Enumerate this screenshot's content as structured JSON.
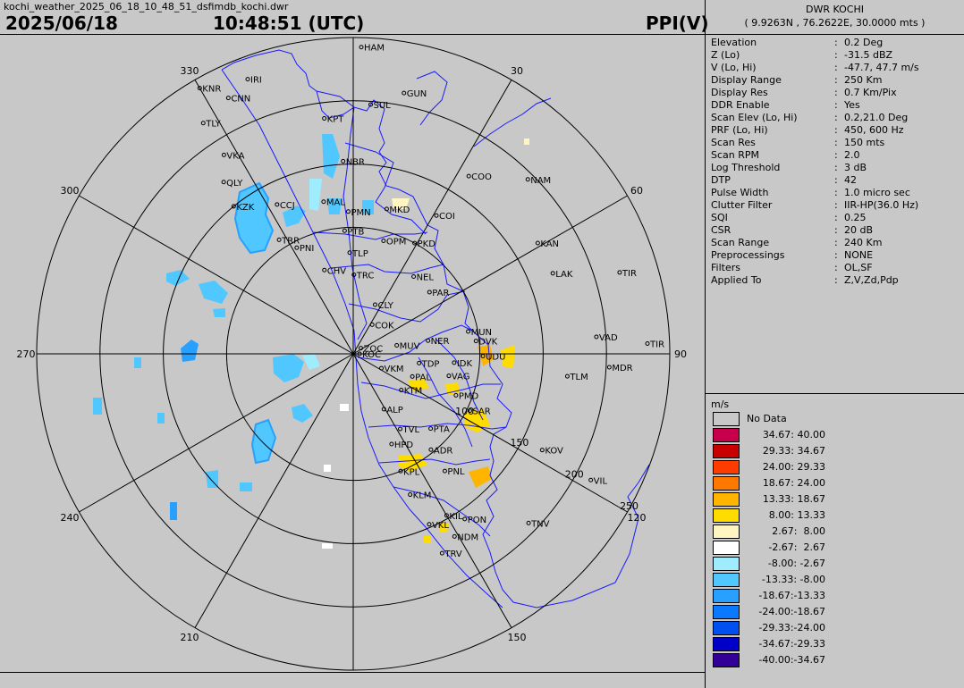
{
  "header": {
    "file_title": "kochi_weather_2025_06_18_10_48_51_dsfimdb_kochi.dwr",
    "date": "2025/06/18",
    "time": "10:48:51 (UTC)",
    "mode": "PPI(V)"
  },
  "station": {
    "name": "DWR KOCHI",
    "coords": "( 9.9263N , 76.2622E, 30.0000 mts )"
  },
  "parameters": [
    {
      "key": "Elevation",
      "value": "0.2 Deg"
    },
    {
      "key": "Z (Lo)",
      "value": "-31.5 dBZ"
    },
    {
      "key": "V (Lo, Hi)",
      "value": "-47.7, 47.7 m/s"
    },
    {
      "key": "Display Range",
      "value": "250 Km"
    },
    {
      "key": "Display Res",
      "value": "0.7 Km/Pix"
    },
    {
      "key": "DDR Enable",
      "value": "Yes"
    },
    {
      "key": "Scan Elev (Lo, Hi)",
      "value": "0.2,21.0 Deg"
    },
    {
      "key": "PRF (Lo, Hi)",
      "value": "450, 600 Hz"
    },
    {
      "key": "Scan Res",
      "value": "150 mts"
    },
    {
      "key": "Scan RPM",
      "value": "2.0"
    },
    {
      "key": "Log Threshold",
      "value": "3 dB"
    },
    {
      "key": "DTP",
      "value": "42"
    },
    {
      "key": "Pulse Width",
      "value": "1.0 micro sec"
    },
    {
      "key": "Clutter Filter",
      "value": "IIR-HP(36.0 Hz)"
    },
    {
      "key": "SQI",
      "value": "0.25"
    },
    {
      "key": "CSR",
      "value": "20 dB"
    },
    {
      "key": "Scan Range",
      "value": "240 Km"
    },
    {
      "key": "Preprocessings",
      "value": "NONE"
    },
    {
      "key": "Filters",
      "value": "OL,SF"
    },
    {
      "key": "Applied To",
      "value": "Z,V,Zd,Pdp"
    }
  ],
  "legend": {
    "unit": "m/s",
    "no_data_label": "No Data",
    "entries": [
      {
        "label": "34.67: 40.00",
        "color": "#c8004b"
      },
      {
        "label": "29.33: 34.67",
        "color": "#c80000"
      },
      {
        "label": "24.00: 29.33",
        "color": "#ff3c00"
      },
      {
        "label": "18.67: 24.00",
        "color": "#ff7800"
      },
      {
        "label": "13.33: 18.67",
        "color": "#ffb400"
      },
      {
        "label": " 8.00: 13.33",
        "color": "#ffdc00"
      },
      {
        "label": " 2.67:  8.00",
        "color": "#fff5c0"
      },
      {
        "label": "-2.67:  2.67",
        "color": "#ffffff"
      },
      {
        "label": "-8.00: -2.67",
        "color": "#a0ecff"
      },
      {
        "label": "-13.33: -8.00",
        "color": "#50c8ff"
      },
      {
        "label": "-18.67:-13.33",
        "color": "#28a0ff"
      },
      {
        "label": "-24.00:-18.67",
        "color": "#0a78ff"
      },
      {
        "label": "-29.33:-24.00",
        "color": "#0050f0"
      },
      {
        "label": "-34.67:-29.33",
        "color": "#0000c8"
      },
      {
        "label": "-40.00:-34.67",
        "color": "#320096"
      }
    ]
  },
  "azimuth_labels": [
    "30",
    "60",
    "90",
    "120",
    "150",
    "210",
    "240",
    "270",
    "300",
    "330"
  ],
  "range_labels": [
    "100",
    "150",
    "200",
    "250"
  ],
  "places": [
    {
      "name": "HAM",
      "az": 1.5,
      "r": 0.97
    },
    {
      "name": "IRI",
      "az": 339,
      "r": 0.93
    },
    {
      "name": "CNN",
      "az": 334,
      "r": 0.9
    },
    {
      "name": "KNR",
      "az": 330,
      "r": 0.97
    },
    {
      "name": "TLY",
      "az": 327,
      "r": 0.87
    },
    {
      "name": "GUN",
      "az": 11,
      "r": 0.84
    },
    {
      "name": "SUL",
      "az": 4,
      "r": 0.79
    },
    {
      "name": "VKA",
      "az": 327,
      "r": 0.75
    },
    {
      "name": "KPT",
      "az": 353,
      "r": 0.75
    },
    {
      "name": "QLY",
      "az": 323,
      "r": 0.68
    },
    {
      "name": "COO",
      "az": 33,
      "r": 0.67
    },
    {
      "name": "NAM",
      "az": 45,
      "r": 0.78
    },
    {
      "name": "KZK",
      "az": 321,
      "r": 0.6
    },
    {
      "name": "NBR",
      "az": 357,
      "r": 0.61
    },
    {
      "name": "CCJ",
      "az": 333,
      "r": 0.53
    },
    {
      "name": "MAL",
      "az": 349,
      "r": 0.49
    },
    {
      "name": "MKD",
      "az": 13,
      "r": 0.47
    },
    {
      "name": "COI",
      "az": 31,
      "r": 0.51
    },
    {
      "name": "KAN",
      "az": 59,
      "r": 0.68
    },
    {
      "name": "PMN",
      "az": 358,
      "r": 0.45
    },
    {
      "name": "TRR",
      "az": 327,
      "r": 0.43
    },
    {
      "name": "LAK",
      "az": 68,
      "r": 0.68
    },
    {
      "name": "TIR",
      "az": 73,
      "r": 0.88
    },
    {
      "name": "PNI",
      "az": 332,
      "r": 0.38
    },
    {
      "name": "PTB",
      "az": 356,
      "r": 0.39
    },
    {
      "name": "OPM",
      "az": 15,
      "r": 0.37
    },
    {
      "name": "PKD",
      "az": 29,
      "r": 0.4
    },
    {
      "name": "TLP",
      "az": 358,
      "r": 0.32
    },
    {
      "name": "CHV",
      "az": 341,
      "r": 0.28
    },
    {
      "name": "NEL",
      "az": 38,
      "r": 0.31
    },
    {
      "name": "TRC",
      "az": 0.5,
      "r": 0.25
    },
    {
      "name": "PAR",
      "az": 51,
      "r": 0.31
    },
    {
      "name": "CLY",
      "az": 24,
      "r": 0.17
    },
    {
      "name": "COK",
      "az": 33,
      "r": 0.11
    },
    {
      "name": "MUN",
      "az": 79,
      "r": 0.37
    },
    {
      "name": "DVK",
      "az": 84,
      "r": 0.39
    },
    {
      "name": "VAD",
      "az": 86,
      "r": 0.77
    },
    {
      "name": "TIR",
      "az": 88,
      "r": 0.93
    },
    {
      "name": "ZOC",
      "az": 53,
      "r": 0.03
    },
    {
      "name": "MUV",
      "az": 79,
      "r": 0.14
    },
    {
      "name": "NER",
      "az": 80,
      "r": 0.24
    },
    {
      "name": "KOC",
      "az": 90,
      "r": 0.02
    },
    {
      "name": "UDU",
      "az": 91,
      "r": 0.41
    },
    {
      "name": "TDP",
      "az": 98,
      "r": 0.21
    },
    {
      "name": "IDK",
      "az": 95,
      "r": 0.32
    },
    {
      "name": "MDR",
      "az": 93,
      "r": 0.81
    },
    {
      "name": "TLM",
      "az": 96,
      "r": 0.68
    },
    {
      "name": "VKM",
      "az": 117,
      "r": 0.1
    },
    {
      "name": "PAL",
      "az": 111,
      "r": 0.2
    },
    {
      "name": "VAG",
      "az": 103,
      "r": 0.31
    },
    {
      "name": "KTM",
      "az": 127,
      "r": 0.19
    },
    {
      "name": "PMD",
      "az": 112,
      "r": 0.35
    },
    {
      "name": "ALP",
      "az": 151,
      "r": 0.2
    },
    {
      "name": "SAR",
      "az": 116,
      "r": 0.41
    },
    {
      "name": "TVL",
      "az": 148,
      "r": 0.28
    },
    {
      "name": "PTA",
      "az": 134,
      "r": 0.34
    },
    {
      "name": "HPD",
      "az": 157,
      "r": 0.31
    },
    {
      "name": "ADR",
      "az": 141,
      "r": 0.39
    },
    {
      "name": "KOV",
      "az": 117,
      "r": 0.67
    },
    {
      "name": "KPL",
      "az": 158,
      "r": 0.4
    },
    {
      "name": "VIL",
      "az": 118,
      "r": 0.85
    },
    {
      "name": "PNL",
      "az": 142,
      "r": 0.47
    },
    {
      "name": "KLM",
      "az": 158,
      "r": 0.48
    },
    {
      "name": "KIL",
      "az": 150,
      "r": 0.59
    },
    {
      "name": "VKL",
      "az": 156,
      "r": 0.59
    },
    {
      "name": "PON",
      "az": 146,
      "r": 0.63
    },
    {
      "name": "TNV",
      "az": 134,
      "r": 0.77
    },
    {
      "name": "NDM",
      "az": 151,
      "r": 0.66
    },
    {
      "name": "TRV",
      "az": 156,
      "r": 0.69
    }
  ]
}
